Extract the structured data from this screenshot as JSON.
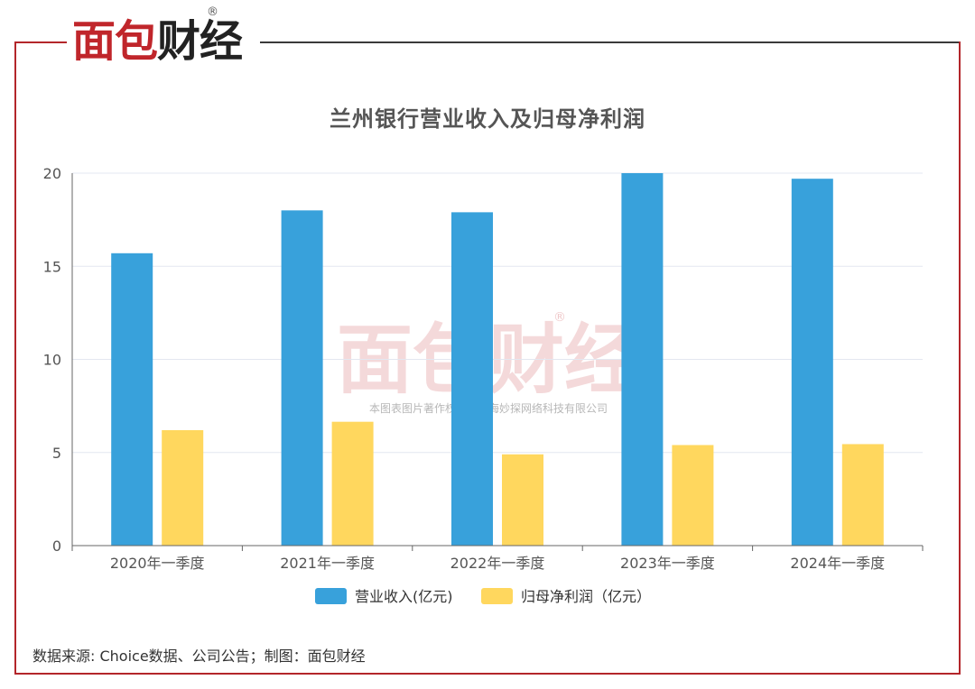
{
  "brand": {
    "logo_text_red": "面包",
    "logo_text_dark": "财经",
    "registered_mark": "®"
  },
  "watermark": {
    "logo_text": "面包财经",
    "registered_mark": "®",
    "copyright_text": "本图表图片著作权属于上海妙探网络科技有限公司"
  },
  "source_note": "数据来源: Choice数据、公司公告；制图：面包财经",
  "colors": {
    "revenue": "#38a1db",
    "net_profit": "#ffd75e",
    "brand_red": "#c0262b",
    "grid": "#e3e7f0",
    "axis_text": "#555555"
  },
  "chart_data": {
    "type": "bar",
    "title": "兰州银行营业收入及归母净利润",
    "categories": [
      "2020年一季度",
      "2021年一季度",
      "2022年一季度",
      "2023年一季度",
      "2024年一季度"
    ],
    "series": [
      {
        "name": "营业收入(亿元)",
        "values": [
          15.7,
          18.0,
          17.9,
          20.0,
          19.7
        ]
      },
      {
        "name": "归母净利润（亿元）",
        "values": [
          6.2,
          6.65,
          4.9,
          5.4,
          5.45
        ]
      }
    ],
    "ylim": [
      0,
      20
    ],
    "yticks": [
      "0",
      "5",
      "10",
      "15",
      "20"
    ],
    "grid": true,
    "legend_position": "bottom-center"
  }
}
